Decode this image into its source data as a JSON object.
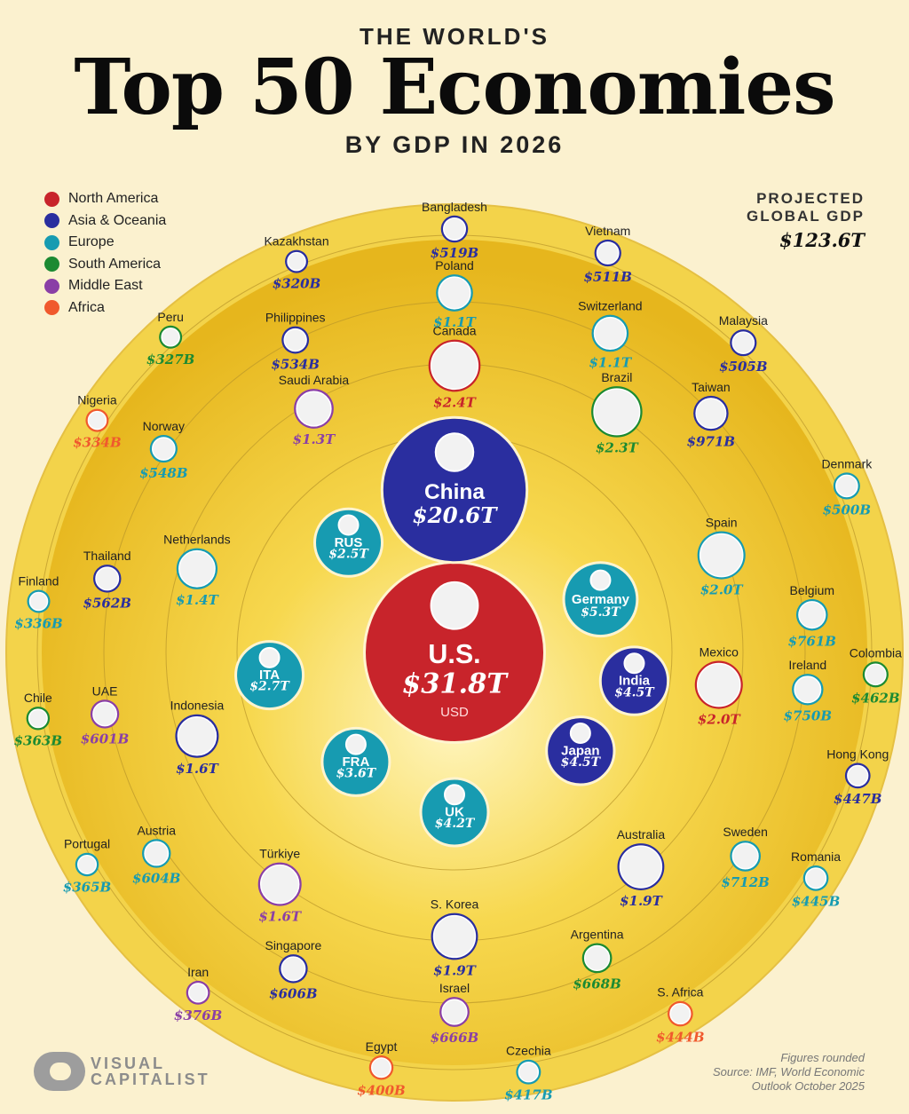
{
  "header": {
    "kicker": "THE WORLD'S",
    "title": "Top 50 Economies",
    "subtitle": "BY GDP IN 2026"
  },
  "legend": [
    {
      "label": "North America",
      "color": "#c8242b"
    },
    {
      "label": "Asia & Oceania",
      "color": "#2a2e9f"
    },
    {
      "label": "Europe",
      "color": "#179bb1"
    },
    {
      "label": "South America",
      "color": "#1c8a32"
    },
    {
      "label": "Middle East",
      "color": "#8a3fa6"
    },
    {
      "label": "Africa",
      "color": "#f0592d"
    }
  ],
  "projected": {
    "label_line1": "PROJECTED",
    "label_line2": "GLOBAL GDP",
    "value": "$123.6T"
  },
  "footer": {
    "brand_line1": "VISUAL",
    "brand_line2": "CAPITALIST",
    "note": "Figures rounded",
    "source_line1": "Source: IMF, World Economic",
    "source_line2": "Outlook October 2025"
  },
  "chart_data": {
    "type": "bubble",
    "unit": "USD",
    "series": [
      {
        "country": "U.S.",
        "gdp_trillions": 31.8,
        "label": "$31.8T",
        "region": "North America"
      },
      {
        "country": "China",
        "gdp_trillions": 20.6,
        "label": "$20.6T",
        "region": "Asia & Oceania"
      },
      {
        "country": "Germany",
        "gdp_trillions": 5.3,
        "label": "$5.3T",
        "region": "Europe"
      },
      {
        "country": "India",
        "gdp_trillions": 4.5,
        "label": "$4.5T",
        "region": "Asia & Oceania"
      },
      {
        "country": "Japan",
        "gdp_trillions": 4.5,
        "label": "$4.5T",
        "region": "Asia & Oceania"
      },
      {
        "country": "UK",
        "gdp_trillions": 4.2,
        "label": "$4.2T",
        "region": "Europe"
      },
      {
        "country": "FRA",
        "gdp_trillions": 3.6,
        "label": "$3.6T",
        "region": "Europe"
      },
      {
        "country": "ITA",
        "gdp_trillions": 2.7,
        "label": "$2.7T",
        "region": "Europe"
      },
      {
        "country": "RUS",
        "gdp_trillions": 2.5,
        "label": "$2.5T",
        "region": "Europe"
      },
      {
        "country": "Canada",
        "gdp_trillions": 2.4,
        "label": "$2.4T",
        "region": "North America"
      },
      {
        "country": "Brazil",
        "gdp_trillions": 2.3,
        "label": "$2.3T",
        "region": "South America"
      },
      {
        "country": "Spain",
        "gdp_trillions": 2.0,
        "label": "$2.0T",
        "region": "Europe"
      },
      {
        "country": "Mexico",
        "gdp_trillions": 2.0,
        "label": "$2.0T",
        "region": "North America"
      },
      {
        "country": "S. Korea",
        "gdp_trillions": 1.9,
        "label": "$1.9T",
        "region": "Asia & Oceania"
      },
      {
        "country": "Australia",
        "gdp_trillions": 1.9,
        "label": "$1.9T",
        "region": "Asia & Oceania"
      },
      {
        "country": "Türkiye",
        "gdp_trillions": 1.6,
        "label": "$1.6T",
        "region": "Middle East"
      },
      {
        "country": "Indonesia",
        "gdp_trillions": 1.6,
        "label": "$1.6T",
        "region": "Asia & Oceania"
      },
      {
        "country": "Netherlands",
        "gdp_trillions": 1.4,
        "label": "$1.4T",
        "region": "Europe"
      },
      {
        "country": "Saudi Arabia",
        "gdp_trillions": 1.3,
        "label": "$1.3T",
        "region": "Middle East"
      },
      {
        "country": "Poland",
        "gdp_trillions": 1.1,
        "label": "$1.1T",
        "region": "Europe"
      },
      {
        "country": "Switzerland",
        "gdp_trillions": 1.1,
        "label": "$1.1T",
        "region": "Europe"
      },
      {
        "country": "Taiwan",
        "gdp_trillions": 0.971,
        "label": "$971B",
        "region": "Asia & Oceania"
      },
      {
        "country": "Belgium",
        "gdp_trillions": 0.761,
        "label": "$761B",
        "region": "Europe"
      },
      {
        "country": "Ireland",
        "gdp_trillions": 0.75,
        "label": "$750B",
        "region": "Europe"
      },
      {
        "country": "Sweden",
        "gdp_trillions": 0.712,
        "label": "$712B",
        "region": "Europe"
      },
      {
        "country": "Argentina",
        "gdp_trillions": 0.668,
        "label": "$668B",
        "region": "South America"
      },
      {
        "country": "Israel",
        "gdp_trillions": 0.666,
        "label": "$666B",
        "region": "Middle East"
      },
      {
        "country": "Singapore",
        "gdp_trillions": 0.606,
        "label": "$606B",
        "region": "Asia & Oceania"
      },
      {
        "country": "Austria",
        "gdp_trillions": 0.604,
        "label": "$604B",
        "region": "Europe"
      },
      {
        "country": "UAE",
        "gdp_trillions": 0.601,
        "label": "$601B",
        "region": "Middle East"
      },
      {
        "country": "Thailand",
        "gdp_trillions": 0.562,
        "label": "$562B",
        "region": "Asia & Oceania"
      },
      {
        "country": "Norway",
        "gdp_trillions": 0.548,
        "label": "$548B",
        "region": "Europe"
      },
      {
        "country": "Philippines",
        "gdp_trillions": 0.534,
        "label": "$534B",
        "region": "Asia & Oceania"
      },
      {
        "country": "Bangladesh",
        "gdp_trillions": 0.519,
        "label": "$519B",
        "region": "Asia & Oceania"
      },
      {
        "country": "Vietnam",
        "gdp_trillions": 0.511,
        "label": "$511B",
        "region": "Asia & Oceania"
      },
      {
        "country": "Malaysia",
        "gdp_trillions": 0.505,
        "label": "$505B",
        "region": "Asia & Oceania"
      },
      {
        "country": "Denmark",
        "gdp_trillions": 0.5,
        "label": "$500B",
        "region": "Europe"
      },
      {
        "country": "Colombia",
        "gdp_trillions": 0.462,
        "label": "$462B",
        "region": "South America"
      },
      {
        "country": "Hong Kong",
        "gdp_trillions": 0.447,
        "label": "$447B",
        "region": "Asia & Oceania"
      },
      {
        "country": "Romania",
        "gdp_trillions": 0.445,
        "label": "$445B",
        "region": "Europe"
      },
      {
        "country": "S. Africa",
        "gdp_trillions": 0.444,
        "label": "$444B",
        "region": "Africa"
      },
      {
        "country": "Czechia",
        "gdp_trillions": 0.417,
        "label": "$417B",
        "region": "Europe"
      },
      {
        "country": "Egypt",
        "gdp_trillions": 0.4,
        "label": "$400B",
        "region": "Africa"
      },
      {
        "country": "Iran",
        "gdp_trillions": 0.376,
        "label": "$376B",
        "region": "Middle East"
      },
      {
        "country": "Portugal",
        "gdp_trillions": 0.365,
        "label": "$365B",
        "region": "Europe"
      },
      {
        "country": "Chile",
        "gdp_trillions": 0.363,
        "label": "$363B",
        "region": "South America"
      },
      {
        "country": "Finland",
        "gdp_trillions": 0.336,
        "label": "$336B",
        "region": "Europe"
      },
      {
        "country": "Nigeria",
        "gdp_trillions": 0.334,
        "label": "$334B",
        "region": "Africa"
      },
      {
        "country": "Peru",
        "gdp_trillions": 0.327,
        "label": "$327B",
        "region": "South America"
      },
      {
        "country": "Kazakhstan",
        "gdp_trillions": 0.32,
        "label": "$320B",
        "region": "Asia & Oceania"
      }
    ]
  }
}
